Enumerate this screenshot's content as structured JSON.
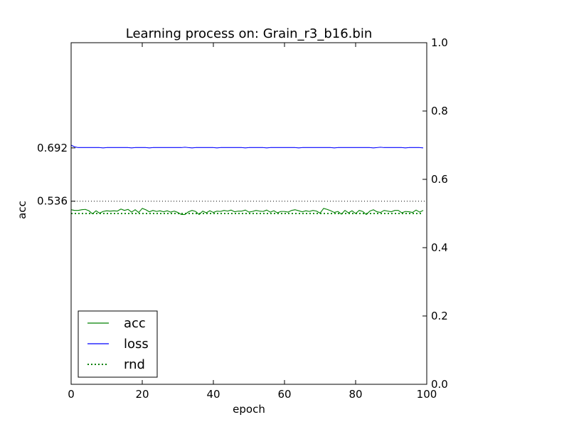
{
  "chart_data": {
    "type": "line",
    "title": "Learning process on: Grain_r3_b16.bin",
    "xlabel": "epoch",
    "ylabel": "acc",
    "xlim": [
      0,
      100
    ],
    "ylim": [
      0,
      1
    ],
    "x_ticks": [
      "0",
      "20",
      "40",
      "60",
      "80",
      "100"
    ],
    "x_tick_values": [
      0,
      20,
      40,
      60,
      80,
      100
    ],
    "y2_ticks": [
      "0.0",
      "0.2",
      "0.4",
      "0.6",
      "0.8",
      "1.0"
    ],
    "y2_tick_values": [
      0,
      0.2,
      0.4,
      0.6,
      0.8,
      1.0
    ],
    "y_marked_values": [
      0.692,
      0.536
    ],
    "y_marked_labels": [
      "0.692",
      "0.536"
    ],
    "reference_line": {
      "y": 0.536,
      "style": "dotted",
      "color": "#000000"
    },
    "grid": false,
    "legend_position": "lower-left",
    "legend": [
      {
        "name": "acc",
        "color": "#008000",
        "style": "solid"
      },
      {
        "name": "loss",
        "color": "#0000ff",
        "style": "solid"
      },
      {
        "name": "rnd",
        "color": "#008000",
        "style": "dotted"
      }
    ],
    "series": [
      {
        "name": "acc",
        "color": "#008000",
        "style": "solid",
        "x": [
          0,
          1,
          2,
          3,
          4,
          5,
          6,
          7,
          8,
          9,
          10,
          11,
          12,
          13,
          14,
          15,
          16,
          17,
          18,
          19,
          20,
          21,
          22,
          23,
          24,
          25,
          26,
          27,
          28,
          29,
          30,
          31,
          32,
          33,
          34,
          35,
          36,
          37,
          38,
          39,
          40,
          41,
          42,
          43,
          44,
          45,
          46,
          47,
          48,
          49,
          50,
          51,
          52,
          53,
          54,
          55,
          56,
          57,
          58,
          59,
          60,
          61,
          62,
          63,
          64,
          65,
          66,
          67,
          68,
          69,
          70,
          71,
          72,
          73,
          74,
          75,
          76,
          77,
          78,
          79,
          80,
          81,
          82,
          83,
          84,
          85,
          86,
          87,
          88,
          89,
          90,
          91,
          92,
          93,
          94,
          95,
          96,
          97,
          98,
          99
        ],
        "values": [
          0.511,
          0.509,
          0.509,
          0.511,
          0.512,
          0.508,
          0.499,
          0.508,
          0.501,
          0.506,
          0.508,
          0.507,
          0.508,
          0.507,
          0.513,
          0.509,
          0.512,
          0.504,
          0.511,
          0.503,
          0.515,
          0.511,
          0.505,
          0.509,
          0.506,
          0.508,
          0.505,
          0.508,
          0.504,
          0.507,
          0.503,
          0.497,
          0.497,
          0.505,
          0.509,
          0.506,
          0.497,
          0.507,
          0.502,
          0.508,
          0.503,
          0.507,
          0.506,
          0.509,
          0.507,
          0.51,
          0.505,
          0.507,
          0.507,
          0.51,
          0.504,
          0.506,
          0.509,
          0.507,
          0.506,
          0.51,
          0.504,
          0.508,
          0.502,
          0.506,
          0.506,
          0.504,
          0.509,
          0.511,
          0.508,
          0.505,
          0.508,
          0.506,
          0.509,
          0.507,
          0.501,
          0.515,
          0.512,
          0.508,
          0.503,
          0.506,
          0.498,
          0.509,
          0.502,
          0.508,
          0.5,
          0.509,
          0.506,
          0.497,
          0.507,
          0.511,
          0.505,
          0.503,
          0.509,
          0.507,
          0.505,
          0.509,
          0.509,
          0.502,
          0.506,
          0.505,
          0.503,
          0.51,
          0.504,
          0.509
        ]
      },
      {
        "name": "loss",
        "color": "#0000ff",
        "style": "solid",
        "x": [
          0,
          1,
          2,
          3,
          4,
          5,
          6,
          7,
          8,
          9,
          10,
          11,
          12,
          13,
          14,
          15,
          16,
          17,
          18,
          19,
          20,
          21,
          22,
          23,
          24,
          25,
          26,
          27,
          28,
          29,
          30,
          31,
          32,
          33,
          34,
          35,
          36,
          37,
          38,
          39,
          40,
          41,
          42,
          43,
          44,
          45,
          46,
          47,
          48,
          49,
          50,
          51,
          52,
          53,
          54,
          55,
          56,
          57,
          58,
          59,
          60,
          61,
          62,
          63,
          64,
          65,
          66,
          67,
          68,
          69,
          70,
          71,
          72,
          73,
          74,
          75,
          76,
          77,
          78,
          79,
          80,
          81,
          82,
          83,
          84,
          85,
          86,
          87,
          88,
          89,
          90,
          91,
          92,
          93,
          94,
          95,
          96,
          97,
          98,
          99
        ],
        "values": [
          0.7,
          0.695,
          0.693,
          0.693,
          0.693,
          0.693,
          0.693,
          0.693,
          0.693,
          0.692,
          0.693,
          0.693,
          0.693,
          0.693,
          0.693,
          0.693,
          0.693,
          0.692,
          0.693,
          0.693,
          0.693,
          0.693,
          0.692,
          0.693,
          0.693,
          0.693,
          0.693,
          0.693,
          0.693,
          0.693,
          0.693,
          0.693,
          0.694,
          0.693,
          0.692,
          0.693,
          0.693,
          0.693,
          0.693,
          0.693,
          0.693,
          0.692,
          0.693,
          0.693,
          0.693,
          0.693,
          0.693,
          0.693,
          0.693,
          0.692,
          0.693,
          0.693,
          0.693,
          0.693,
          0.693,
          0.692,
          0.693,
          0.693,
          0.693,
          0.693,
          0.693,
          0.693,
          0.693,
          0.693,
          0.692,
          0.693,
          0.693,
          0.693,
          0.693,
          0.693,
          0.693,
          0.693,
          0.693,
          0.693,
          0.692,
          0.693,
          0.693,
          0.693,
          0.693,
          0.693,
          0.693,
          0.693,
          0.693,
          0.693,
          0.693,
          0.692,
          0.693,
          0.694,
          0.693,
          0.693,
          0.693,
          0.693,
          0.693,
          0.693,
          0.692,
          0.693,
          0.693,
          0.693,
          0.693,
          0.692
        ]
      },
      {
        "name": "rnd",
        "color": "#008000",
        "style": "dotted",
        "x": [
          0,
          99
        ],
        "values": [
          0.5,
          0.5
        ]
      }
    ]
  }
}
